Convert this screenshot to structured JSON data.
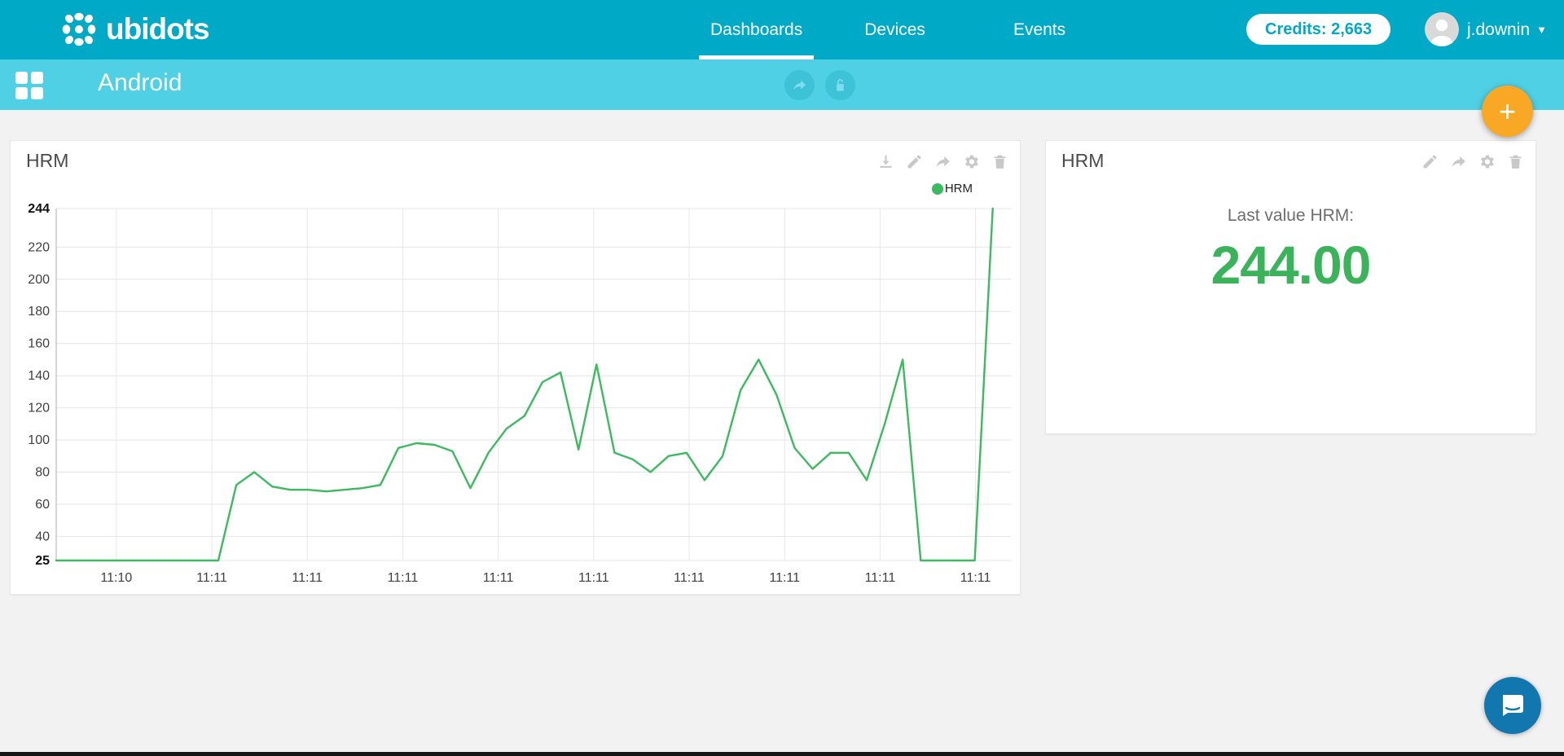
{
  "nav": {
    "brand": "ubidots",
    "items": [
      {
        "label": "Dashboards",
        "active": true
      },
      {
        "label": "Devices",
        "active": false
      },
      {
        "label": "Events",
        "active": false
      }
    ],
    "credits_label": "Credits: 2,663",
    "user": "j.downin"
  },
  "subheader": {
    "dashboard_title": "Android"
  },
  "fab": {
    "label": "+"
  },
  "widgets": {
    "chart": {
      "title": "HRM",
      "legend": "HRM",
      "toolbar_icons": [
        "download",
        "edit",
        "share",
        "settings",
        "delete"
      ]
    },
    "last_value": {
      "title": "HRM",
      "label": "Last value HRM:",
      "value": "244.00",
      "toolbar_icons": [
        "edit",
        "share",
        "settings",
        "delete"
      ]
    }
  },
  "chart_data": {
    "type": "line",
    "title": "HRM",
    "series": [
      {
        "name": "HRM",
        "color": "#3cba5f",
        "values": [
          25,
          25,
          25,
          25,
          25,
          25,
          25,
          25,
          25,
          25,
          72,
          80,
          71,
          69,
          69,
          68,
          69,
          70,
          72,
          95,
          98,
          97,
          93,
          70,
          92,
          107,
          115,
          136,
          142,
          94,
          147,
          92,
          88,
          80,
          90,
          92,
          75,
          90,
          131,
          150,
          128,
          95,
          82,
          92,
          92,
          75,
          110,
          150,
          25,
          25,
          25,
          25,
          244
        ]
      }
    ],
    "x_tick_labels": [
      "11:10",
      "11:11",
      "11:11",
      "11:11",
      "11:11",
      "11:11",
      "11:11",
      "11:11",
      "11:11",
      "11:11"
    ],
    "y_ticks": [
      244,
      220,
      200,
      180,
      160,
      140,
      120,
      100,
      80,
      60,
      40,
      25
    ],
    "ylim": [
      25,
      244
    ],
    "grid": true,
    "legend_position": "top-right",
    "last_value": 244.0
  },
  "colors": {
    "topbar_teal": "#00a9c6",
    "subheader_teal": "#4fd0e4",
    "line_green": "#3cba5f",
    "value_green": "#3bb35a",
    "fab_orange": "#f9a825",
    "chat_blue": "#1277ae",
    "icon_gray": "#c8c8c8",
    "page_bg": "#f2f2f2"
  }
}
